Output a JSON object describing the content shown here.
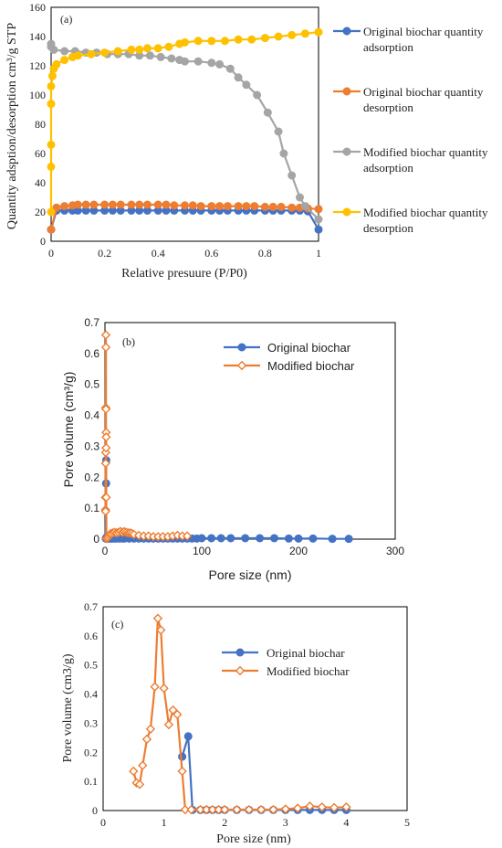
{
  "colors": {
    "blue": "#4472C4",
    "orange": "#ED7D31",
    "gray": "#A5A5A5",
    "yellow": "#FFC000",
    "frame": "#000000"
  },
  "chart_data": [
    {
      "panel": "(a)",
      "type": "line",
      "xlabel": "Relative presuure (P/P0)",
      "ylabel": "Quantity adsption/desorption cm³/g STP",
      "xlim": [
        0,
        1
      ],
      "ylim": [
        0,
        160
      ],
      "xticks": [
        "0",
        "0.2",
        "0.4",
        "0.6",
        "0.8",
        "1"
      ],
      "yticks": [
        "0",
        "20",
        "40",
        "60",
        "80",
        "100",
        "120",
        "140",
        "160"
      ],
      "grid": false,
      "legend_position": "right",
      "series": [
        {
          "name": "Original biochar quantity adsorption",
          "color": "#4472C4",
          "marker": "circle",
          "x": [
            0.0,
            0.02,
            0.05,
            0.08,
            0.1,
            0.13,
            0.16,
            0.2,
            0.23,
            0.26,
            0.3,
            0.33,
            0.36,
            0.4,
            0.43,
            0.46,
            0.5,
            0.53,
            0.56,
            0.6,
            0.63,
            0.66,
            0.7,
            0.73,
            0.76,
            0.8,
            0.83,
            0.86,
            0.9,
            0.93,
            0.96,
            1.0
          ],
          "y": [
            8,
            21,
            21,
            21,
            21,
            21,
            21,
            21,
            21,
            21,
            21,
            21,
            21,
            21,
            21,
            21,
            21,
            21,
            21,
            21,
            21,
            21,
            21,
            21,
            21,
            21,
            21,
            21,
            21,
            21,
            20.5,
            8
          ]
        },
        {
          "name": "Original biochar quantity desorption",
          "color": "#ED7D31",
          "marker": "circle",
          "x": [
            0.0,
            0.02,
            0.05,
            0.08,
            0.1,
            0.13,
            0.16,
            0.2,
            0.23,
            0.26,
            0.3,
            0.33,
            0.36,
            0.4,
            0.43,
            0.46,
            0.5,
            0.53,
            0.56,
            0.6,
            0.63,
            0.66,
            0.7,
            0.73,
            0.76,
            0.8,
            0.83,
            0.86,
            0.9,
            0.93,
            0.96,
            1.0
          ],
          "y": [
            8,
            23,
            24,
            24.5,
            25,
            25,
            25,
            25,
            25,
            25,
            25,
            25,
            25,
            25,
            25,
            24.5,
            24.5,
            24.5,
            24,
            24,
            24,
            24,
            24,
            24,
            24,
            23.5,
            23.5,
            23.5,
            23,
            23,
            22.5,
            22
          ]
        },
        {
          "name": "Modified biochar quantity adsorption",
          "color": "#A5A5A5",
          "marker": "circle",
          "x": [
            0.0,
            0.0,
            0.01,
            0.05,
            0.09,
            0.13,
            0.17,
            0.21,
            0.25,
            0.29,
            0.33,
            0.37,
            0.41,
            0.45,
            0.48,
            0.5,
            0.55,
            0.6,
            0.63,
            0.67,
            0.7,
            0.73,
            0.77,
            0.81,
            0.85,
            0.87,
            0.9,
            0.93,
            0.95,
            1.0
          ],
          "y": [
            135,
            133,
            131,
            130,
            130,
            129,
            129,
            128,
            128,
            128,
            127,
            127,
            126,
            125,
            124,
            123,
            123,
            122,
            121,
            118,
            112,
            107,
            100,
            88,
            75,
            60,
            45,
            30,
            24,
            15
          ]
        },
        {
          "name": "Modified biochar quantity desorption",
          "color": "#FFC000",
          "marker": "circle",
          "x": [
            0.0,
            0.0,
            0.0,
            0.0,
            0.0,
            0.005,
            0.01,
            0.02,
            0.05,
            0.08,
            0.1,
            0.15,
            0.2,
            0.25,
            0.3,
            0.33,
            0.36,
            0.4,
            0.44,
            0.48,
            0.5,
            0.55,
            0.6,
            0.65,
            0.7,
            0.75,
            0.8,
            0.85,
            0.9,
            0.95,
            1.0
          ],
          "y": [
            20,
            51,
            66,
            94,
            106,
            113,
            118,
            121,
            124,
            126,
            127,
            128,
            129,
            130,
            131,
            131,
            132,
            132,
            133,
            135,
            136,
            137,
            137,
            137,
            138,
            138,
            139,
            140,
            141,
            142,
            143
          ]
        }
      ]
    },
    {
      "panel": "(b)",
      "type": "line",
      "xlabel": "Pore size (nm)",
      "ylabel": "Pore volume (cm³/g)",
      "xlim": [
        0,
        300
      ],
      "ylim": [
        0,
        0.7
      ],
      "xticks": [
        "0",
        "100",
        "200",
        "300"
      ],
      "yticks": [
        "0",
        "0.1",
        "0.2",
        "0.3",
        "0.4",
        "0.5",
        "0.6",
        "0.7"
      ],
      "grid": false,
      "legend_position": "top-right",
      "series": [
        {
          "name": "Original biochar",
          "color": "#4472C4",
          "marker": "circle",
          "x": [
            0.8,
            1.2,
            1.3,
            1.4,
            2,
            3,
            4,
            5,
            6,
            8,
            10,
            12,
            15,
            18,
            20,
            25,
            30,
            35,
            40,
            45,
            50,
            55,
            60,
            65,
            70,
            75,
            80,
            85,
            90,
            95,
            100,
            110,
            120,
            130,
            145,
            160,
            175,
            190,
            200,
            215,
            235,
            252
          ],
          "y": [
            0.002,
            0.18,
            0.255,
            0.005,
            0.003,
            0.002,
            0.002,
            0.002,
            0.002,
            0.002,
            0.002,
            0.002,
            0.002,
            0.002,
            0.002,
            0.002,
            0.002,
            0.002,
            0.002,
            0.002,
            0.002,
            0.002,
            0.002,
            0.002,
            0.002,
            0.002,
            0.002,
            0.002,
            0.002,
            0.002,
            0.003,
            0.003,
            0.003,
            0.003,
            0.003,
            0.003,
            0.003,
            0.002,
            0.002,
            0.002,
            0.001,
            0.001
          ]
        },
        {
          "name": "Modified biochar",
          "color": "#ED7D31",
          "marker": "diamond",
          "x": [
            0.5,
            0.55,
            0.6,
            0.7,
            0.75,
            0.85,
            0.95,
            1.0,
            1.05,
            1.15,
            1.2,
            1.25,
            1.35,
            1.45,
            2,
            3,
            4,
            5,
            6,
            8,
            10,
            12,
            14,
            16,
            18,
            20,
            22,
            24,
            26,
            28,
            30,
            35,
            40,
            45,
            50,
            55,
            60,
            65,
            70,
            75,
            80,
            85
          ],
          "y": [
            0.135,
            0.095,
            0.09,
            0.245,
            0.28,
            0.425,
            0.66,
            0.62,
            0.42,
            0.295,
            0.345,
            0.33,
            0.135,
            0.002,
            0.002,
            0.005,
            0.01,
            0.015,
            0.018,
            0.02,
            0.022,
            0.02,
            0.022,
            0.025,
            0.022,
            0.024,
            0.022,
            0.02,
            0.02,
            0.018,
            0.015,
            0.012,
            0.01,
            0.01,
            0.008,
            0.008,
            0.008,
            0.008,
            0.01,
            0.012,
            0.01,
            0.01
          ]
        }
      ]
    },
    {
      "panel": "(c)",
      "type": "line",
      "xlabel": "Pore size (nm)",
      "ylabel": "Pore volume (cm3/g)",
      "xlim": [
        0,
        5
      ],
      "ylim": [
        0,
        0.7
      ],
      "xticks": [
        "0",
        "1",
        "2",
        "3",
        "4",
        "5"
      ],
      "yticks": [
        "0",
        "0.1",
        "0.2",
        "0.3",
        "0.4",
        "0.5",
        "0.6",
        "0.7"
      ],
      "grid": false,
      "legend_position": "top-right",
      "series": [
        {
          "name": "Original biochar",
          "color": "#4472C4",
          "marker": "circle",
          "x": [
            1.3,
            1.4,
            1.47,
            1.6,
            1.7,
            1.8,
            1.9,
            2.0,
            2.2,
            2.4,
            2.6,
            2.8,
            3.0,
            3.2,
            3.4,
            3.6,
            3.8,
            4.0
          ],
          "y": [
            0.185,
            0.255,
            0.002,
            0.002,
            0.002,
            0.002,
            0.002,
            0.002,
            0.002,
            0.002,
            0.002,
            0.002,
            0.002,
            0.002,
            0.002,
            0.002,
            0.002,
            0.002
          ]
        },
        {
          "name": "Modified biochar",
          "color": "#ED7D31",
          "marker": "diamond",
          "x": [
            0.5,
            0.55,
            0.6,
            0.65,
            0.72,
            0.78,
            0.85,
            0.9,
            0.95,
            1.0,
            1.08,
            1.15,
            1.22,
            1.3,
            1.35,
            1.45,
            1.6,
            1.7,
            1.8,
            1.9,
            2.0,
            2.2,
            2.4,
            2.6,
            2.8,
            3.0,
            3.2,
            3.4,
            3.6,
            3.8,
            4.0
          ],
          "y": [
            0.135,
            0.095,
            0.09,
            0.155,
            0.245,
            0.28,
            0.425,
            0.66,
            0.62,
            0.42,
            0.295,
            0.345,
            0.33,
            0.135,
            0.003,
            0.003,
            0.003,
            0.003,
            0.003,
            0.003,
            0.003,
            0.003,
            0.003,
            0.003,
            0.003,
            0.005,
            0.008,
            0.015,
            0.012,
            0.01,
            0.012
          ]
        }
      ]
    }
  ]
}
